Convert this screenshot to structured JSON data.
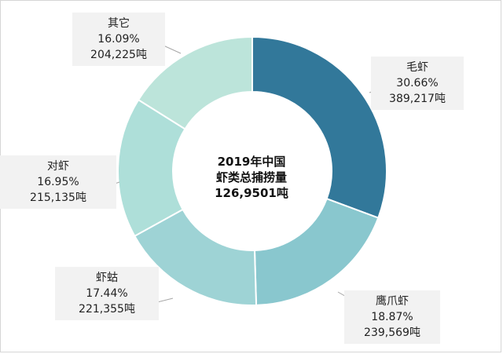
{
  "chart_data": {
    "type": "pie",
    "donut": true,
    "center_text": [
      "2019年中国",
      "虾类总捕捞量",
      "126,9501吨"
    ],
    "slices": [
      {
        "name": "毛虾",
        "percent": "30.66%",
        "value": 389217,
        "value_label": "389,217吨",
        "color": "#32789a"
      },
      {
        "name": "鹰爪虾",
        "percent": "18.87%",
        "value": 239569,
        "value_label": "239,569吨",
        "color": "#89c7ce"
      },
      {
        "name": "虾蛄",
        "percent": "17.44%",
        "value": 221355,
        "value_label": "221,355吨",
        "color": "#9ed3d5"
      },
      {
        "name": "对虾",
        "percent": "16.95%",
        "value": 215135,
        "value_label": "215,135吨",
        "color": "#aedfd9"
      },
      {
        "name": "其它",
        "percent": "16.09%",
        "value": 204225,
        "value_label": "204,225吨",
        "color": "#bce4da"
      }
    ]
  }
}
